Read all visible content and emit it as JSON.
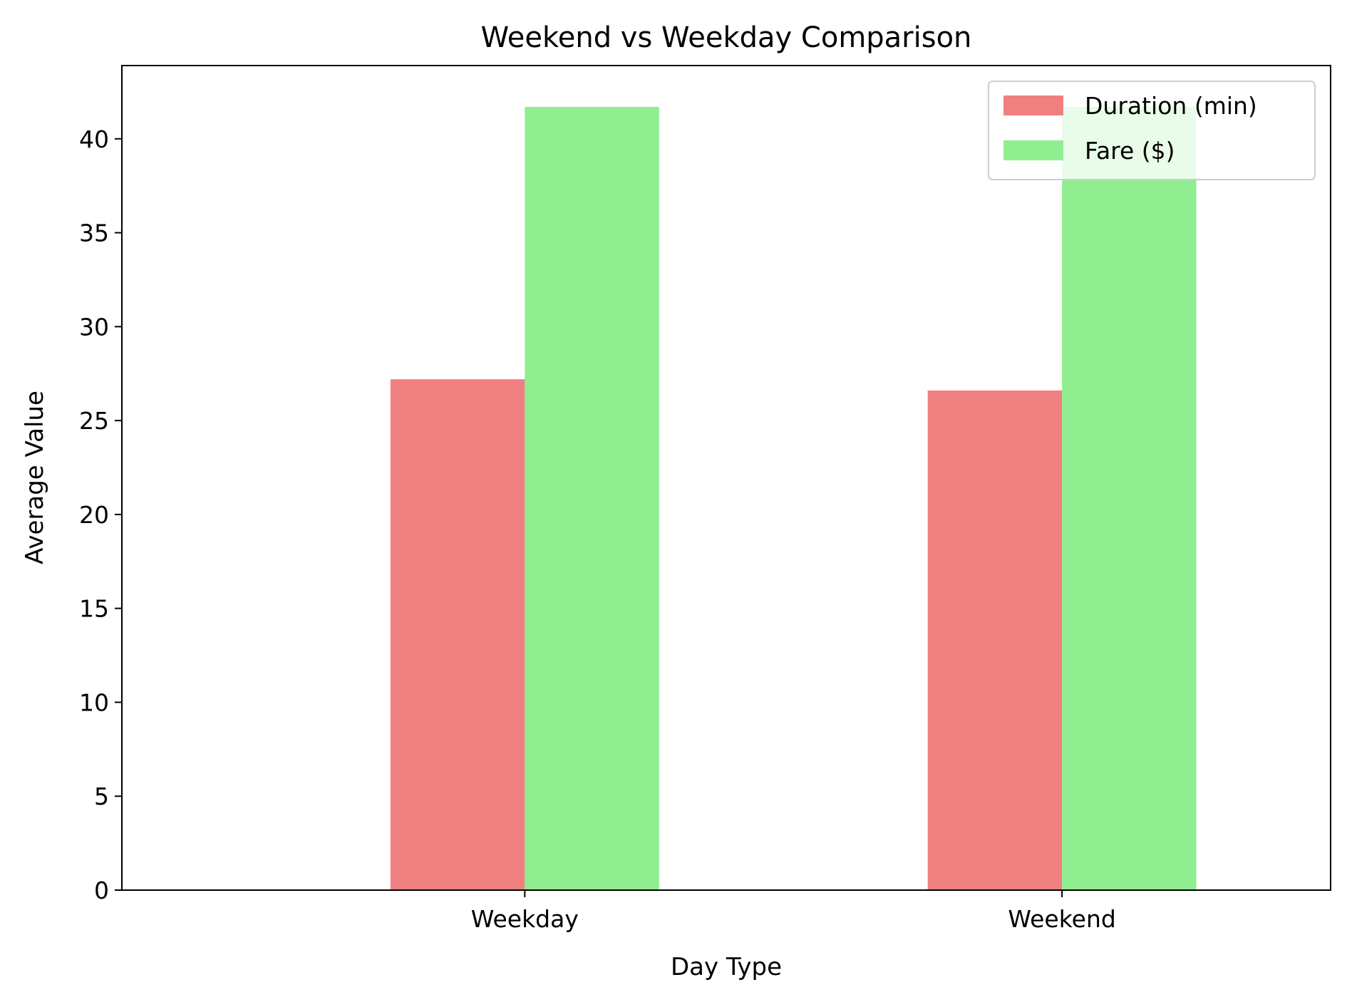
{
  "chart_data": {
    "type": "bar",
    "title": "Weekend vs Weekday Comparison",
    "xlabel": "Day Type",
    "ylabel": "Average Value",
    "categories": [
      "Weekday",
      "Weekend"
    ],
    "series": [
      {
        "name": "Duration (min)",
        "color": "#f08080",
        "values": [
          27.2,
          26.6
        ]
      },
      {
        "name": "Fare ($)",
        "color": "#90ee90",
        "values": [
          41.7,
          41.7
        ]
      }
    ],
    "ylim": [
      0,
      43.9
    ],
    "yticks": [
      0,
      5,
      10,
      15,
      20,
      25,
      30,
      35,
      40
    ],
    "grid": false,
    "legend": {
      "position": "top-right"
    }
  }
}
